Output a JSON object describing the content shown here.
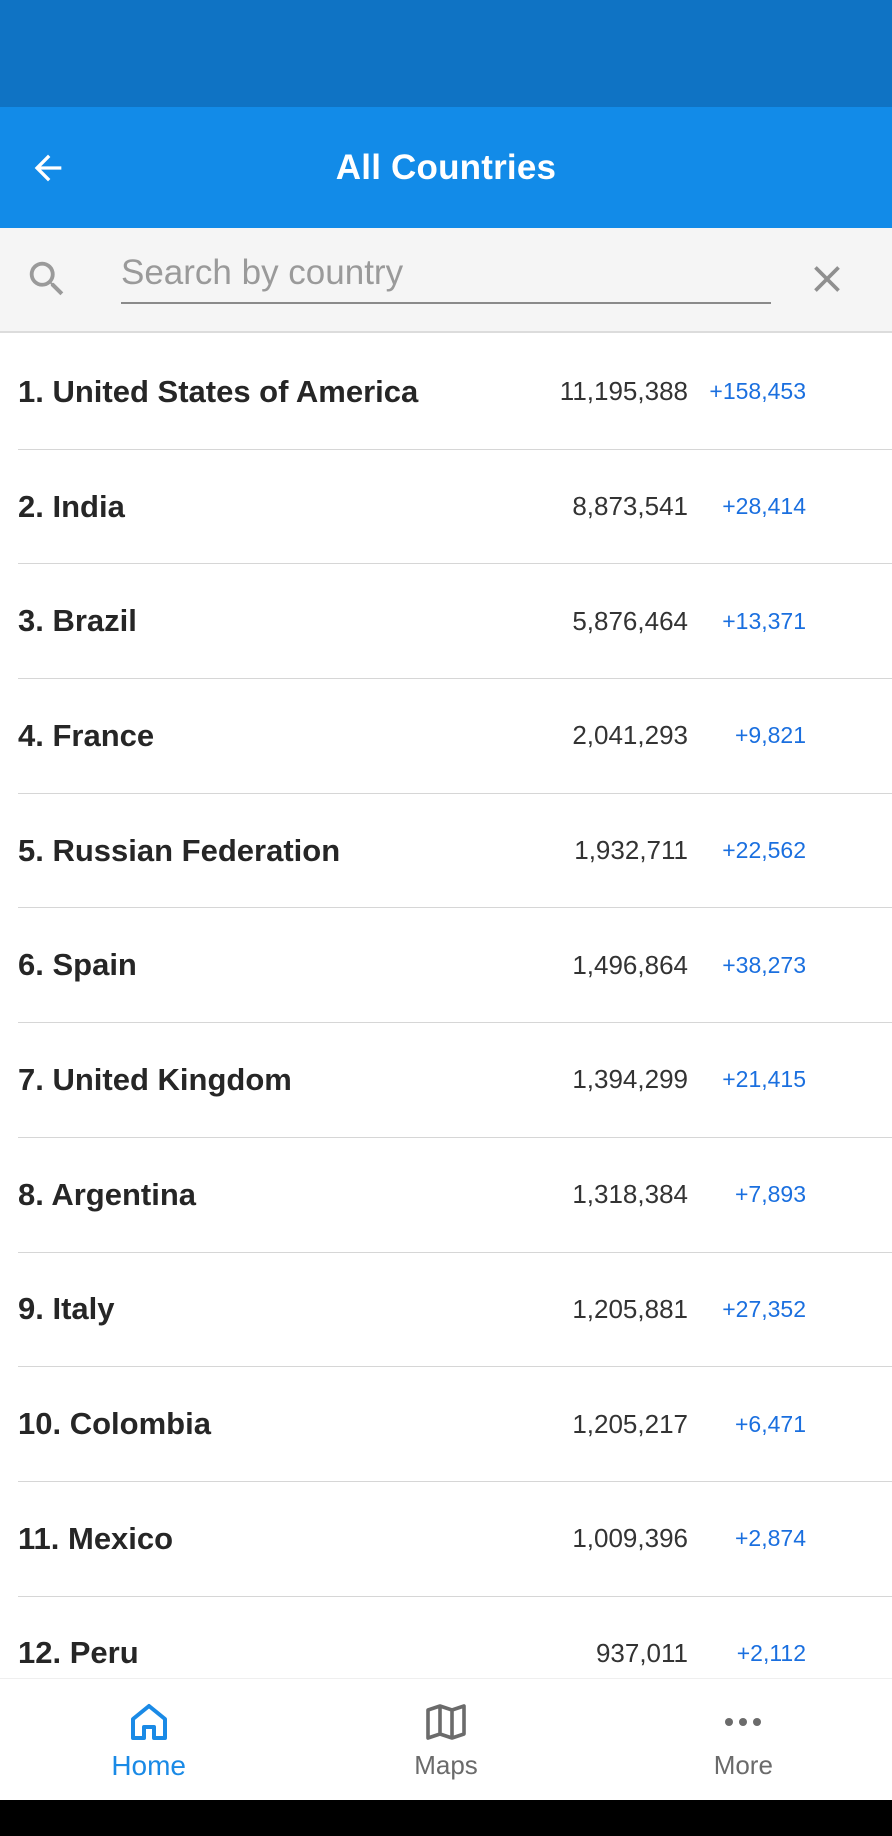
{
  "header": {
    "title": "All Countries"
  },
  "search": {
    "placeholder": "Search by country",
    "value": ""
  },
  "countries": [
    {
      "name": "1. United States of America",
      "total": "11,195,388",
      "new": "+158,453"
    },
    {
      "name": "2. India",
      "total": "8,873,541",
      "new": "+28,414"
    },
    {
      "name": "3. Brazil",
      "total": "5,876,464",
      "new": "+13,371"
    },
    {
      "name": "4. France",
      "total": "2,041,293",
      "new": "+9,821"
    },
    {
      "name": "5. Russian Federation",
      "total": "1,932,711",
      "new": "+22,562"
    },
    {
      "name": "6. Spain",
      "total": "1,496,864",
      "new": "+38,273"
    },
    {
      "name": "7. United Kingdom",
      "total": "1,394,299",
      "new": "+21,415"
    },
    {
      "name": "8. Argentina",
      "total": "1,318,384",
      "new": "+7,893"
    },
    {
      "name": "9. Italy",
      "total": "1,205,881",
      "new": "+27,352"
    },
    {
      "name": "10. Colombia",
      "total": "1,205,217",
      "new": "+6,471"
    },
    {
      "name": "11. Mexico",
      "total": "1,009,396",
      "new": "+2,874"
    },
    {
      "name": "12. Peru",
      "total": "937,011",
      "new": "+2,112"
    }
  ],
  "bottom_nav": {
    "items": [
      {
        "label": "Home",
        "icon": "home-icon",
        "active": true
      },
      {
        "label": "Maps",
        "icon": "map-icon",
        "active": false
      },
      {
        "label": "More",
        "icon": "more-icon",
        "active": false
      }
    ]
  },
  "colors": {
    "status_bar": "#0f73c4",
    "app_bar": "#128be8",
    "new_cases": "#1a6fdf",
    "active_nav": "#1a8ae6"
  }
}
